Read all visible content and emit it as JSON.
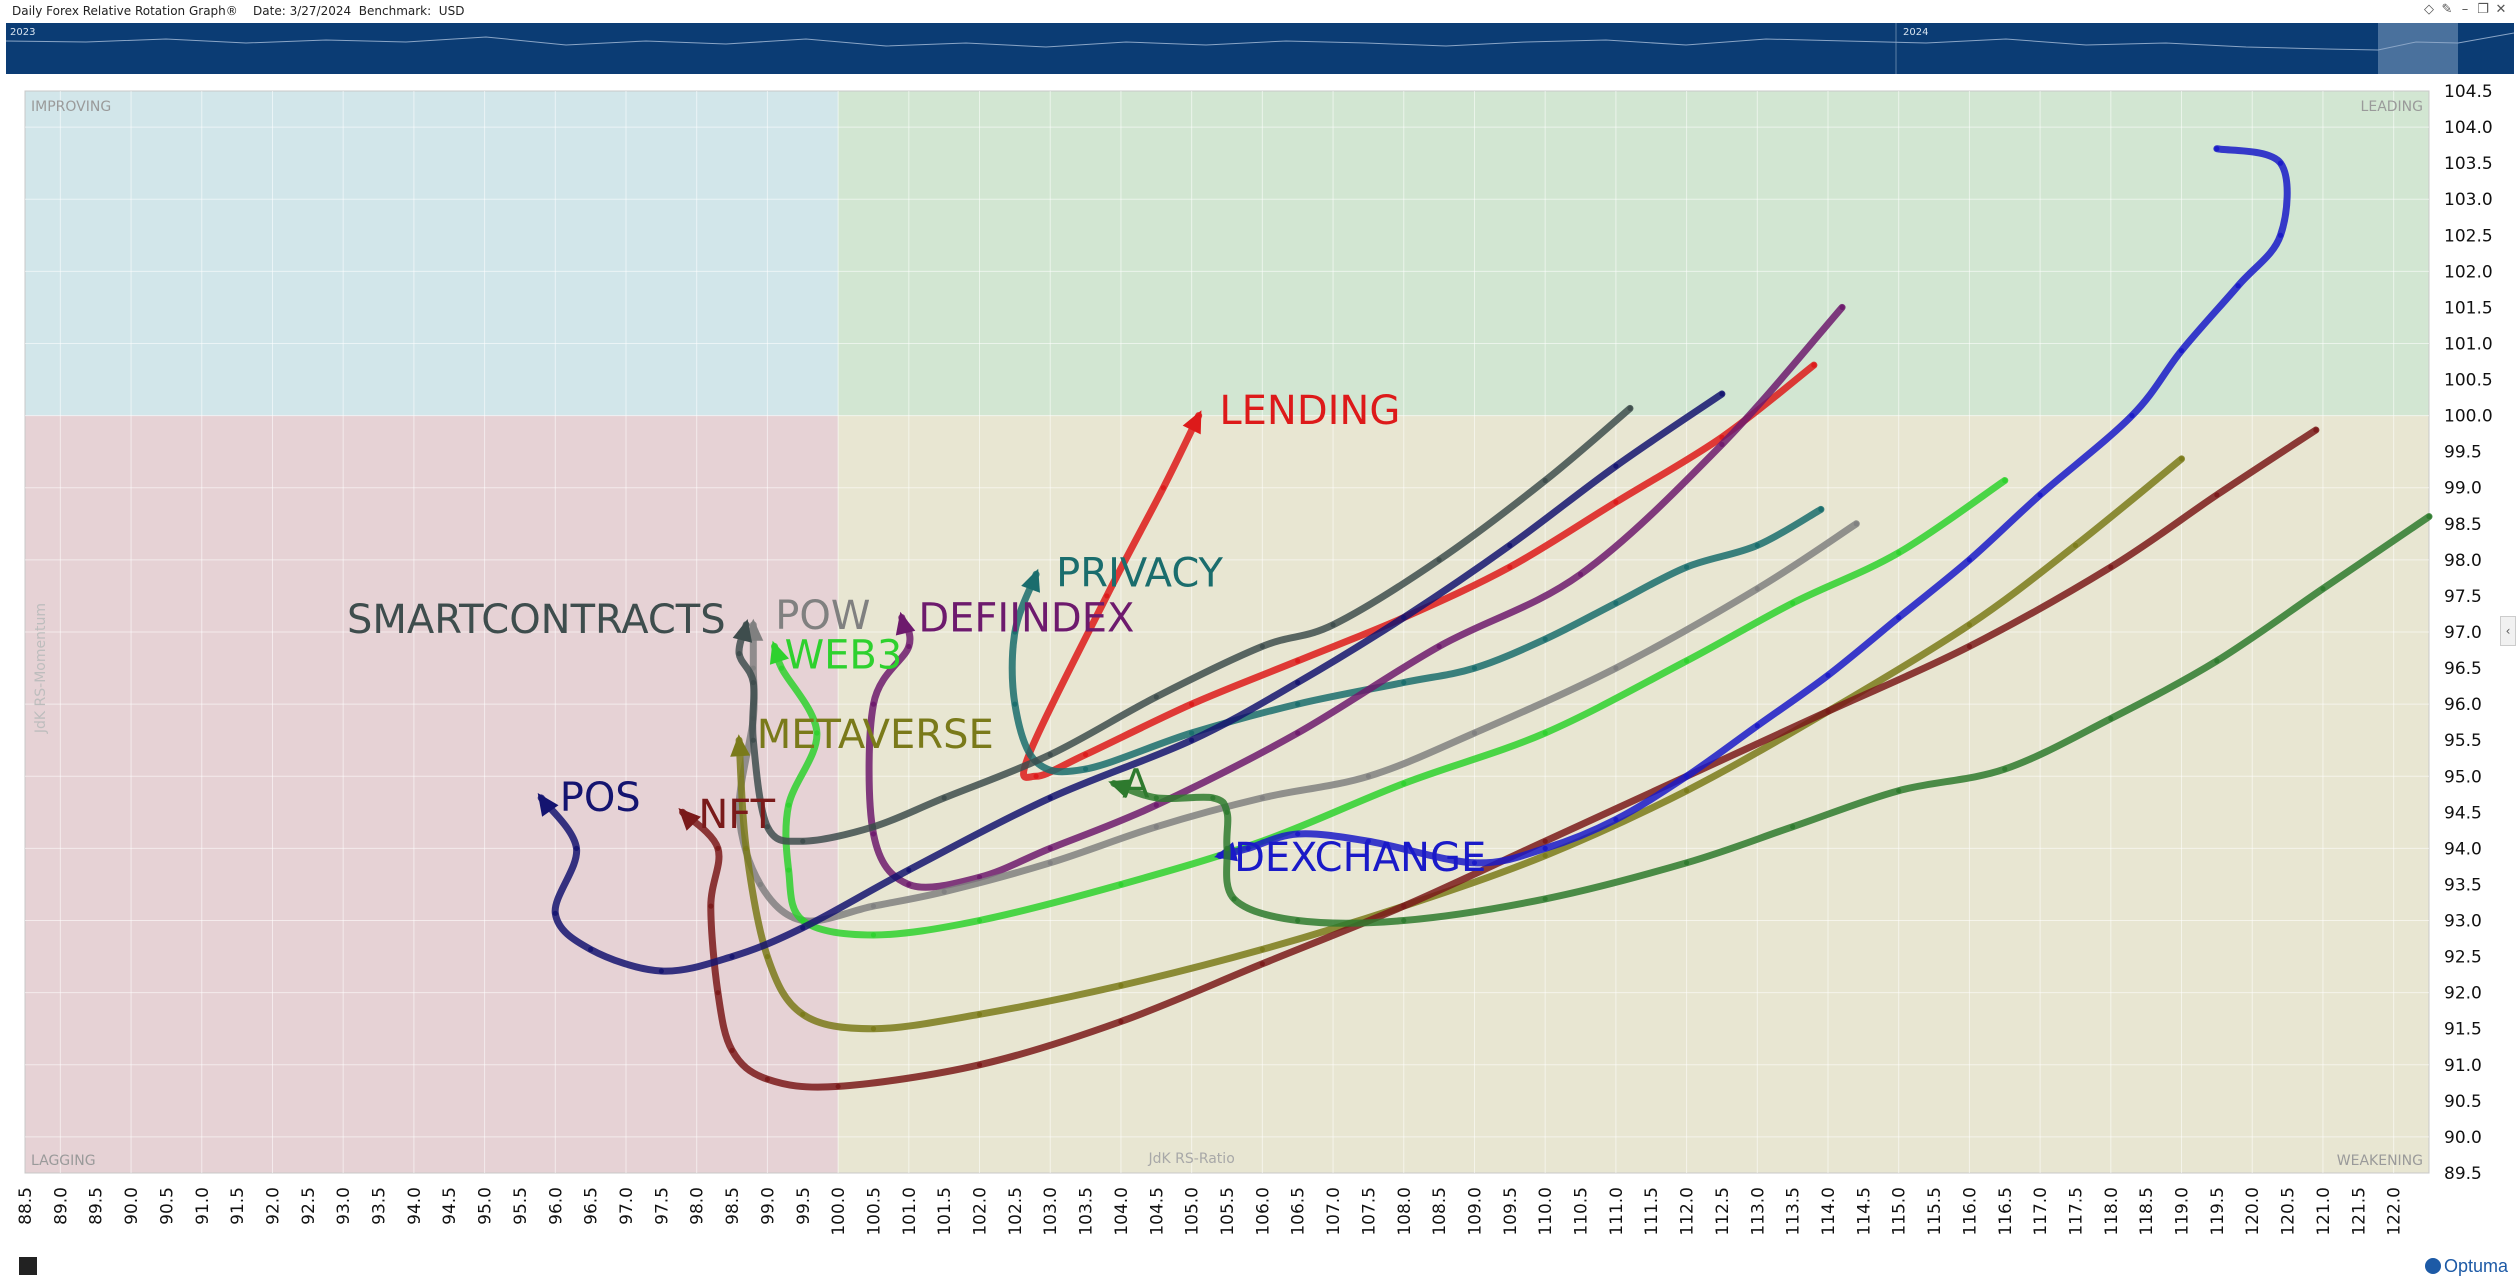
{
  "window": {
    "title": "Daily Forex Relative Rotation Graph®",
    "date_label": "Date: 3/27/2024",
    "benchmark_label": "Benchmark:  USD"
  },
  "navigator": {
    "year_left": "2023",
    "year_right": "2024"
  },
  "brand": "Optuma",
  "quadrants": {
    "improving": "IMPROVING",
    "leading": "LEADING",
    "lagging": "LAGGING",
    "weakening": "WEAKENING"
  },
  "colors": {
    "improving": "#d2e6ea",
    "leading": "#d2e6d2",
    "lagging": "#e6d2d5",
    "weakening": "#e8e6d2",
    "navigator": "#0b3c74",
    "brand": "#1d5aa6"
  },
  "chart_data": {
    "type": "scatter",
    "subtype": "relative-rotation-graph",
    "xlabel": "JdK RS-Ratio",
    "ylabel": "JdK RS-Momentum",
    "xlim": [
      88.5,
      122.5
    ],
    "ylim": [
      89.5,
      104.5
    ],
    "xticks": [
      "88.5",
      "89.0",
      "89.5",
      "90.0",
      "90.5",
      "91.0",
      "91.5",
      "92.0",
      "92.5",
      "93.0",
      "93.5",
      "94.0",
      "94.5",
      "95.0",
      "95.5",
      "96.0",
      "96.5",
      "97.0",
      "97.5",
      "98.0",
      "98.5",
      "99.0",
      "99.5",
      "100.0",
      "100.5",
      "101.0",
      "101.5",
      "102.0",
      "102.5",
      "103.0",
      "103.5",
      "104.0",
      "104.5",
      "105.0",
      "105.5",
      "106.0",
      "106.5",
      "107.0",
      "107.5",
      "108.0",
      "108.5",
      "109.0",
      "109.5",
      "110.0",
      "110.5",
      "111.0",
      "111.5",
      "112.0",
      "112.5",
      "113.0",
      "113.5",
      "114.0",
      "114.5",
      "115.0",
      "115.5",
      "116.0",
      "116.5",
      "117.0",
      "117.5",
      "118.0",
      "118.5",
      "119.0",
      "119.5",
      "120.0",
      "120.5",
      "121.0",
      "121.5",
      "122.0"
    ],
    "yticks": [
      "89.5",
      "90.0",
      "90.5",
      "91.0",
      "91.5",
      "92.0",
      "92.5",
      "93.0",
      "93.5",
      "94.0",
      "94.5",
      "95.0",
      "95.5",
      "96.0",
      "96.5",
      "97.0",
      "97.5",
      "98.0",
      "98.5",
      "99.0",
      "99.5",
      "100.0",
      "100.5",
      "101.0",
      "101.5",
      "102.0",
      "102.5",
      "103.0",
      "103.5",
      "104.0",
      "104.5"
    ],
    "center": [
      100,
      100
    ],
    "series": [
      {
        "name": "LENDING",
        "color": "#dd1a1a",
        "x": [
          113.8,
          112.5,
          111.0,
          109.5,
          108.0,
          106.5,
          105.0,
          103.5,
          102.8,
          102.7,
          103.8,
          104.6,
          105.1
        ],
        "y": [
          100.7,
          99.7,
          98.8,
          97.9,
          97.2,
          96.6,
          96.0,
          95.3,
          95.0,
          95.3,
          97.5,
          99.0,
          100.0
        ]
      },
      {
        "name": "PRIVACY",
        "color": "#1a6d6d",
        "x": [
          113.9,
          113.0,
          112.0,
          111.0,
          110.0,
          109.0,
          108.0,
          106.5,
          105.0,
          103.5,
          102.8,
          102.5,
          102.5,
          102.8
        ],
        "y": [
          98.7,
          98.2,
          97.9,
          97.4,
          96.9,
          96.5,
          96.3,
          96.0,
          95.6,
          95.1,
          95.2,
          96.0,
          97.0,
          97.8
        ]
      },
      {
        "name": "DEFIINDEX",
        "color": "#6d1a6d",
        "x": [
          114.2,
          112.5,
          110.5,
          108.5,
          106.5,
          104.5,
          103.0,
          102.0,
          101.0,
          100.5,
          100.5,
          101.0,
          100.9
        ],
        "y": [
          101.5,
          99.6,
          97.8,
          96.8,
          95.6,
          94.6,
          94.0,
          93.6,
          93.5,
          94.2,
          96.0,
          96.8,
          97.2
        ]
      },
      {
        "name": "POW",
        "color": "#808080",
        "x": [
          114.4,
          113.0,
          111.0,
          109.0,
          107.5,
          106.0,
          104.5,
          103.0,
          101.5,
          100.5,
          99.5,
          98.9,
          98.6,
          98.8,
          98.8,
          98.8
        ],
        "y": [
          98.5,
          97.6,
          96.5,
          95.6,
          95.0,
          94.7,
          94.3,
          93.8,
          93.4,
          93.2,
          93.0,
          93.5,
          94.5,
          95.8,
          96.5,
          97.1
        ]
      },
      {
        "name": "WEB3",
        "color": "#2ed12e",
        "x": [
          116.5,
          115.0,
          113.5,
          112.0,
          110.0,
          108.0,
          106.0,
          104.0,
          102.0,
          100.5,
          99.5,
          99.3,
          99.3,
          99.7,
          99.2,
          99.1
        ],
        "y": [
          99.1,
          98.1,
          97.4,
          96.6,
          95.6,
          94.9,
          94.1,
          93.5,
          93.0,
          92.8,
          93.0,
          93.7,
          94.6,
          95.6,
          96.5,
          96.8
        ]
      },
      {
        "name": "SMARTCONTRACTS",
        "color": "#3e4d4d",
        "x": [
          111.2,
          110.0,
          108.5,
          107.0,
          106.0,
          104.5,
          103.0,
          101.5,
          100.5,
          99.5,
          99.0,
          98.8,
          98.8,
          98.6,
          98.7
        ],
        "y": [
          100.1,
          99.1,
          98.0,
          97.1,
          96.8,
          96.1,
          95.3,
          94.7,
          94.3,
          94.1,
          94.3,
          95.5,
          96.3,
          96.7,
          97.1
        ]
      },
      {
        "name": "METAVERSE",
        "color": "#7a7a1a",
        "x": [
          119.0,
          117.5,
          116.0,
          114.0,
          112.0,
          110.0,
          108.0,
          106.0,
          104.0,
          102.0,
          100.5,
          99.5,
          99.0,
          98.7,
          98.6
        ],
        "y": [
          99.4,
          98.2,
          97.1,
          95.9,
          94.8,
          93.9,
          93.2,
          92.6,
          92.1,
          91.7,
          91.5,
          91.7,
          92.5,
          94.0,
          95.5
        ]
      },
      {
        "name": "NFT",
        "color": "#7a1a1a",
        "x": [
          120.9,
          119.5,
          118.0,
          116.0,
          114.0,
          112.0,
          110.0,
          108.0,
          106.0,
          104.0,
          102.0,
          100.0,
          99.0,
          98.5,
          98.3,
          98.2,
          98.3,
          97.8
        ],
        "y": [
          99.8,
          98.9,
          97.9,
          96.8,
          95.9,
          95.0,
          94.1,
          93.2,
          92.4,
          91.6,
          91.0,
          90.7,
          90.8,
          91.2,
          92.0,
          93.2,
          94.0,
          94.5
        ]
      },
      {
        "name": "POS",
        "color": "#141470",
        "x": [
          112.5,
          111.0,
          109.5,
          108.0,
          106.5,
          105.0,
          103.0,
          101.0,
          99.5,
          98.5,
          97.5,
          96.5,
          96.0,
          96.3,
          95.8
        ],
        "y": [
          100.3,
          99.3,
          98.2,
          97.2,
          96.3,
          95.5,
          94.7,
          93.7,
          92.9,
          92.5,
          92.3,
          92.6,
          93.1,
          94.0,
          94.7
        ]
      },
      {
        "name": "DEXCHANGE",
        "color": "#1a1ac8",
        "x": [
          119.5,
          120.4,
          120.4,
          119.8,
          119.0,
          118.3,
          117.0,
          116.0,
          115.0,
          114.0,
          113.0,
          112.0,
          111.0,
          110.0,
          109.0,
          107.5,
          106.5,
          105.8,
          105.4
        ],
        "y": [
          103.7,
          103.5,
          102.5,
          101.8,
          100.9,
          100.0,
          98.9,
          98.0,
          97.2,
          96.4,
          95.7,
          95.0,
          94.4,
          94.0,
          93.8,
          94.1,
          94.2,
          94.0,
          93.9
        ]
      },
      {
        "name": "A",
        "color": "#2e7a2e",
        "x": [
          122.5,
          121.0,
          119.5,
          118.0,
          116.5,
          115.0,
          113.5,
          112.0,
          110.0,
          108.0,
          106.5,
          105.6,
          105.5,
          105.5,
          105.3,
          104.5,
          103.9
        ],
        "y": [
          98.6,
          97.6,
          96.6,
          95.8,
          95.1,
          94.8,
          94.3,
          93.8,
          93.3,
          93.0,
          93.0,
          93.3,
          94.0,
          94.5,
          94.7,
          94.7,
          94.9
        ]
      }
    ]
  }
}
